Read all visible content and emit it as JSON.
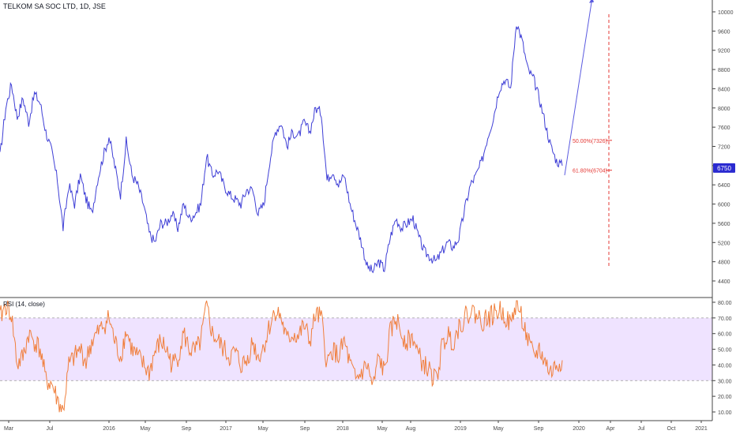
{
  "header": {
    "title": "TELKOM SA SOC LTD, 1D, JSE"
  },
  "rsi_panel": {
    "label": "RSI (14, close)"
  },
  "colors": {
    "price_line": "#3f3fd6",
    "rsi_line": "#f07f3c",
    "rsi_band": "#efe3ff",
    "fib": "#e53935",
    "axis_text": "#4a4a4a"
  },
  "chart_data": [
    {
      "type": "line",
      "title": "TELKOM SA SOC LTD, 1D, JSE",
      "ylim": [
        4300,
        10200
      ],
      "y_ticks": [
        4400,
        4800,
        5200,
        5600,
        6000,
        6400,
        6800,
        7200,
        7600,
        8000,
        8400,
        8800,
        9200,
        9600,
        10000
      ],
      "last_price_label": "6750",
      "last_price": 6750,
      "x_ticks": [
        "Mar",
        "Jul",
        "2016",
        "May",
        "Sep",
        "2017",
        "May",
        "Sep",
        "2018",
        "May",
        "Aug",
        "2019",
        "May",
        "Sep",
        "2020",
        "Apr",
        "Jul",
        "Oct",
        "2021"
      ],
      "series": [
        {
          "values": [
            7000,
            8000,
            8500,
            7800,
            8200,
            7700,
            8300,
            8100,
            7500,
            7100,
            6500,
            5500,
            6400,
            6000,
            6600,
            6100,
            5800,
            6500,
            7000,
            7400,
            6800,
            6200,
            7300,
            6600,
            6400,
            6000,
            5400,
            5200,
            5600,
            5600,
            5800,
            5500,
            6000,
            5700,
            5800,
            6000,
            7000,
            6600,
            6700,
            6400,
            6200,
            6100,
            6000,
            6300,
            6300,
            5800,
            6000,
            6900,
            7500,
            7700,
            7200,
            7500,
            7400,
            7700,
            7500,
            8000,
            7900,
            6500,
            6700,
            6400,
            6600,
            6000,
            5600,
            5200,
            4700,
            4600,
            4800,
            4650,
            5300,
            5700,
            5500,
            5600,
            5700,
            5300,
            5000,
            4900,
            4800,
            5000,
            5200,
            5100,
            5300,
            5900,
            6400,
            6600,
            6900,
            7400,
            7800,
            8400,
            8600,
            8400,
            9800,
            9400,
            8800,
            8600,
            8200,
            7700,
            7200,
            6900,
            6800
          ]
        }
      ],
      "projection": {
        "from": 6600,
        "to": 10300
      },
      "fib_levels": [
        {
          "label": "50.00%(7326)",
          "value": 7326
        },
        {
          "label": "61.80%(6704)",
          "value": 6704
        }
      ],
      "fib_vertical": {
        "from": 4700,
        "to": 9950
      }
    },
    {
      "type": "line",
      "title": "RSI (14, close)",
      "ylim": [
        5,
        83
      ],
      "y_ticks": [
        10,
        20,
        30,
        40,
        50,
        60,
        70,
        80
      ],
      "y_tick_labels": [
        "10.00",
        "20.00",
        "30.00",
        "40.00",
        "50.00",
        "60.00",
        "70.00",
        "80.00"
      ],
      "band": [
        30,
        70
      ],
      "series": [
        {
          "values": [
            70,
            78,
            72,
            40,
            45,
            60,
            55,
            50,
            30,
            28,
            18,
            10,
            40,
            45,
            50,
            42,
            55,
            60,
            65,
            70,
            55,
            45,
            62,
            50,
            45,
            40,
            35,
            48,
            55,
            50,
            40,
            45,
            60,
            50,
            48,
            55,
            78,
            60,
            55,
            50,
            45,
            48,
            40,
            42,
            55,
            45,
            52,
            65,
            75,
            70,
            55,
            60,
            58,
            65,
            55,
            72,
            70,
            40,
            50,
            45,
            55,
            40,
            30,
            35,
            40,
            25,
            45,
            35,
            60,
            70,
            60,
            55,
            58,
            45,
            40,
            35,
            30,
            50,
            60,
            55,
            65,
            70,
            75,
            72,
            68,
            70,
            72,
            75,
            72,
            65,
            80,
            70,
            55,
            45,
            50,
            42,
            35,
            40,
            43
          ]
        }
      ]
    }
  ]
}
